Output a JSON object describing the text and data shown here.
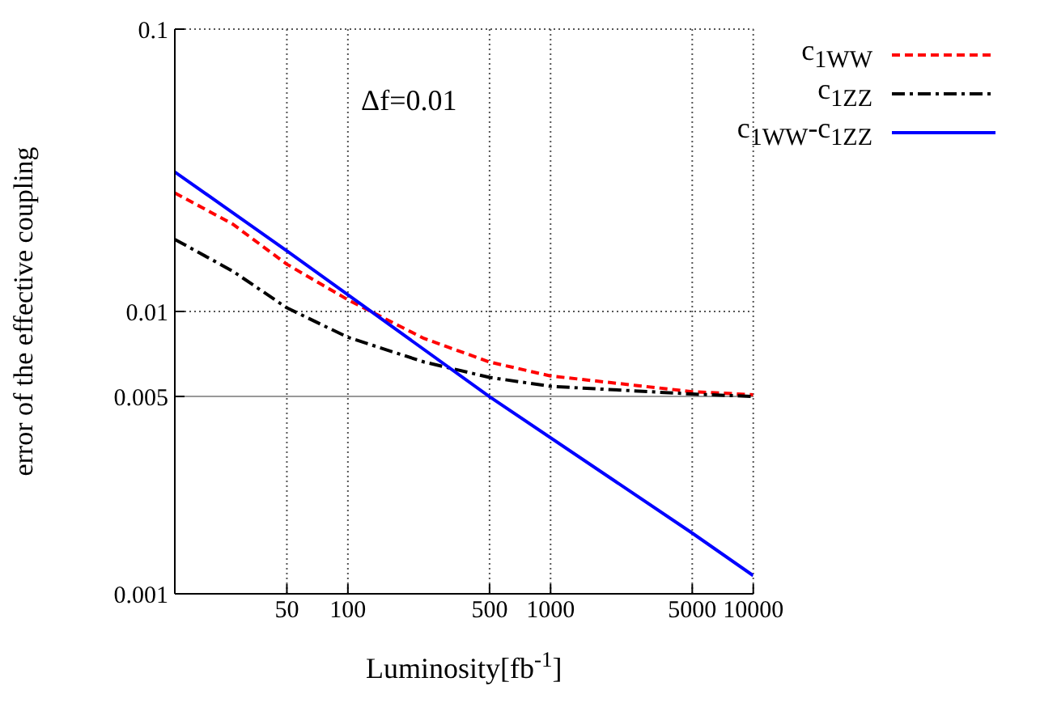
{
  "chart_data": {
    "type": "line",
    "xlabel": "Luminosity[fb$^{-1}$]",
    "ylabel": "error of the effective coupling",
    "annotations": [
      "Δf=0.01"
    ],
    "log": "xy",
    "grid": true,
    "legend": "top right",
    "marker": "none",
    "xlim": [
      14,
      10000
    ],
    "xticks": [
      50,
      100,
      500,
      1000,
      5000,
      10000
    ],
    "ylim": [
      0.001,
      0.1
    ],
    "yticks": [
      0.001,
      0.005,
      0.01,
      0.1
    ],
    "ref_lines": [
      {
        "axis": "y",
        "value": 0.005,
        "color": "#999999",
        "line_style": "solid"
      }
    ],
    "series": [
      {
        "name": "c$_{1WW}$",
        "color": "#ff0000",
        "line_style": "dashed",
        "x": [
          14,
          27,
          50,
          100,
          141,
          238,
          500,
          1000,
          2640,
          5000,
          10000
        ],
        "values": [
          0.0263,
          0.0204,
          0.0147,
          0.011,
          0.0097,
          0.00802,
          0.00662,
          0.00591,
          0.00547,
          0.0052,
          0.00507
        ]
      },
      {
        "name": "c$_{1ZZ}$",
        "color": "#000000",
        "line_style": "dashdot",
        "x": [
          14,
          27,
          50,
          100,
          238,
          500,
          1000,
          5000,
          10000
        ],
        "values": [
          0.018,
          0.0139,
          0.0103,
          0.0081,
          0.00662,
          0.00584,
          0.00543,
          0.0051,
          0.005
        ]
      },
      {
        "name": "c$_{1WW}$-c$_{1ZZ}$",
        "color": "#0000ff",
        "line_style": "solid",
        "x": [
          14,
          50,
          500,
          5000,
          10000
        ],
        "values": [
          0.0312,
          0.0164,
          0.00499,
          0.00164,
          0.00116
        ]
      }
    ]
  }
}
